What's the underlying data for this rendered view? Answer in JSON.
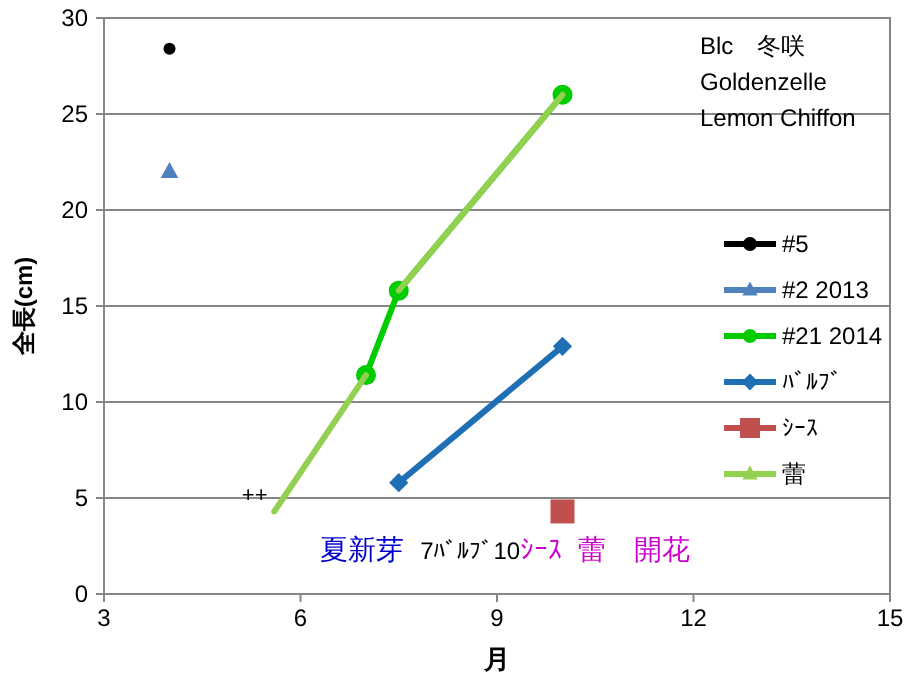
{
  "chart_data": {
    "type": "line",
    "xlabel": "月",
    "ylabel": "全長(cm)",
    "xlim": [
      3,
      15
    ],
    "xticks": [
      3,
      6,
      9,
      12,
      15
    ],
    "ylim": [
      0,
      30
    ],
    "yticks": [
      0,
      5,
      10,
      15,
      20,
      25,
      30
    ],
    "grid": "y",
    "legend": "right",
    "series": [
      {
        "name": "#5",
        "type": "scatter",
        "color": "#000000",
        "marker": "circle",
        "x": [
          4
        ],
        "values": [
          28.4
        ]
      },
      {
        "name": "#2 2013",
        "type": "scatter",
        "color": "#4f81bd",
        "marker": "triangle",
        "x": [
          4
        ],
        "values": [
          22
        ]
      },
      {
        "name": "#21 2014",
        "color": "#00cc00",
        "marker": "circle",
        "x": [
          7,
          7.5,
          10
        ],
        "values": [
          11.4,
          15.8,
          26
        ]
      },
      {
        "name": "ﾊﾞﾙﾌﾞ",
        "color": "#1f6fb5",
        "marker": "diamond",
        "x": [
          7.5,
          10
        ],
        "values": [
          5.8,
          12.9
        ]
      },
      {
        "name": "ｼｰｽ",
        "type": "scatter",
        "color": "#c0504d",
        "marker": "square",
        "x": [
          10
        ],
        "values": [
          4.3
        ]
      },
      {
        "name": "蕾",
        "color": "#92d050",
        "marker": "none",
        "x": [
          5.6,
          7,
          7.2,
          7.5,
          10
        ],
        "values": [
          4.3,
          11.4,
          null,
          15.8,
          26
        ]
      }
    ],
    "annotations": [
      "Blc　冬咲",
      "Goldenzelle",
      "Lemon Chiffon",
      "++",
      "夏新芽",
      "7ﾊﾞﾙﾌﾞ",
      "10",
      "ｼｰｽ",
      "蕾　開花"
    ]
  }
}
